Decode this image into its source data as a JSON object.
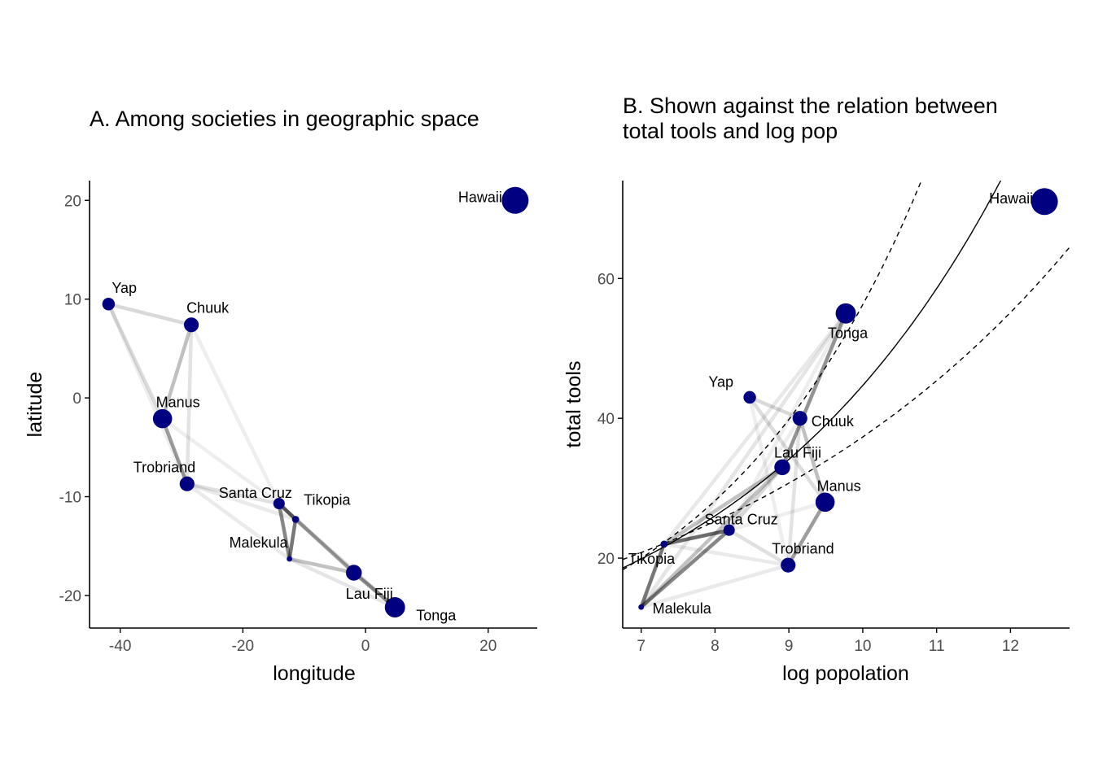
{
  "chart_data": [
    {
      "type": "scatter",
      "title": "A. Among societies in geographic space",
      "xlabel": "longitude",
      "ylabel": "latitude",
      "xlim": [
        -45,
        28
      ],
      "ylim": [
        -23.3,
        22
      ],
      "xticks": [
        -40,
        -20,
        0,
        20
      ],
      "yticks": [
        -20,
        -10,
        0,
        10,
        20
      ],
      "xtick_labels": [
        "-40",
        "-20",
        "0",
        "20"
      ],
      "ytick_labels": [
        "-20",
        "-10",
        "0",
        "10",
        "20"
      ],
      "points": [
        {
          "label": "Malekula",
          "x": -12.4,
          "y": -16.3
        },
        {
          "label": "Tikopia",
          "x": -11.4,
          "y": -12.3
        },
        {
          "label": "Santa Cruz",
          "x": -14.1,
          "y": -10.7
        },
        {
          "label": "Yap",
          "x": -41.9,
          "y": 9.5
        },
        {
          "label": "Lau Fiji",
          "x": -1.9,
          "y": -17.7
        },
        {
          "label": "Trobriand",
          "x": -29.1,
          "y": -8.7
        },
        {
          "label": "Chuuk",
          "x": -28.4,
          "y": 7.4
        },
        {
          "label": "Manus",
          "x": -33.1,
          "y": -2.1
        },
        {
          "label": "Tonga",
          "x": 4.8,
          "y": -21.2
        },
        {
          "label": "Hawaii",
          "x": 24.4,
          "y": 20.0
        }
      ]
    },
    {
      "type": "scatter",
      "title": "B. Shown against the relation between total tools and log pop",
      "title_lines": [
        "B. Shown against the relation between",
        "total tools and log pop"
      ],
      "xlabel": "log popolation",
      "ylabel": "total tools",
      "xlim": [
        6.75,
        12.8
      ],
      "ylim": [
        10,
        74
      ],
      "xticks": [
        7,
        8,
        9,
        10,
        11,
        12
      ],
      "yticks": [
        20,
        40,
        60
      ],
      "xtick_labels": [
        "7",
        "8",
        "9",
        "10",
        "11",
        "12"
      ],
      "ytick_labels": [
        "20",
        "40",
        "60"
      ],
      "points": [
        {
          "label": "Malekula",
          "x": 7.0,
          "y": 13
        },
        {
          "label": "Tikopia",
          "x": 7.31,
          "y": 22
        },
        {
          "label": "Santa Cruz",
          "x": 8.19,
          "y": 24
        },
        {
          "label": "Yap",
          "x": 8.47,
          "y": 43
        },
        {
          "label": "Lau Fiji",
          "x": 8.91,
          "y": 33
        },
        {
          "label": "Trobriand",
          "x": 8.99,
          "y": 19
        },
        {
          "label": "Chuuk",
          "x": 9.15,
          "y": 40
        },
        {
          "label": "Manus",
          "x": 9.49,
          "y": 28
        },
        {
          "label": "Tonga",
          "x": 9.77,
          "y": 55
        },
        {
          "label": "Hawaii",
          "x": 12.46,
          "y": 71
        }
      ],
      "trend": {
        "mean": {
          "a": 1.1,
          "b": 0.27
        },
        "lower": {
          "a": 1.67,
          "b": 0.195
        },
        "upper": {
          "a": 0.58,
          "b": 0.345
        }
      }
    }
  ],
  "society_covariance": {
    "names": [
      "Malekula",
      "Tikopia",
      "Santa Cruz",
      "Yap",
      "Lau Fiji",
      "Trobriand",
      "Chuuk",
      "Manus",
      "Tonga",
      "Hawaii"
    ],
    "marker_weight": [
      0.03,
      0.1,
      0.3,
      0.35,
      0.5,
      0.45,
      0.45,
      0.65,
      0.7,
      1.0
    ],
    "rho": [
      [
        1.0,
        0.79,
        0.69,
        0.0,
        0.3,
        0.04,
        0.0,
        0.0,
        0.07,
        0.0
      ],
      [
        0.79,
        1.0,
        0.86,
        0.0,
        0.3,
        0.04,
        0.0,
        0.0,
        0.05,
        0.0
      ],
      [
        0.69,
        0.86,
        1.0,
        0.0,
        0.15,
        0.1,
        0.01,
        0.01,
        0.02,
        0.0
      ],
      [
        0.0,
        0.0,
        0.0,
        1.0,
        0.0,
        0.01,
        0.15,
        0.13,
        0.0,
        0.0
      ],
      [
        0.3,
        0.3,
        0.15,
        0.0,
        1.0,
        0.0,
        0.0,
        0.0,
        0.6,
        0.0
      ],
      [
        0.04,
        0.04,
        0.1,
        0.01,
        0.0,
        1.0,
        0.08,
        0.54,
        0.0,
        0.0
      ],
      [
        0.0,
        0.0,
        0.01,
        0.15,
        0.0,
        0.08,
        1.0,
        0.31,
        0.0,
        0.0
      ],
      [
        0.0,
        0.0,
        0.01,
        0.13,
        0.0,
        0.54,
        0.31,
        1.0,
        0.0,
        0.0
      ],
      [
        0.07,
        0.05,
        0.02,
        0.0,
        0.6,
        0.0,
        0.0,
        0.0,
        1.0,
        0.0
      ],
      [
        0.0,
        0.0,
        0.0,
        0.0,
        0.0,
        0.0,
        0.0,
        0.0,
        0.0,
        1.0
      ]
    ]
  },
  "colors": {
    "point": "#000080",
    "line": "#000000",
    "axis": "#000000",
    "tick_label": "#4d4d4d",
    "background": "#ffffff"
  }
}
